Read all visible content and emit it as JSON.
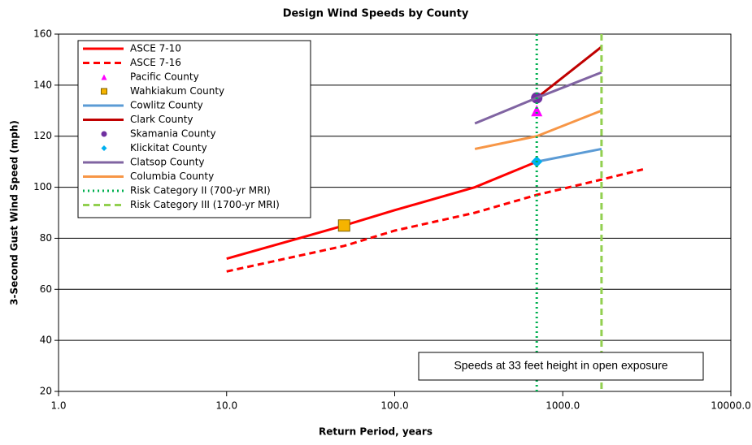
{
  "chart_data": {
    "type": "line",
    "title": "Design Wind Speeds by County",
    "xlabel": "Return Period, years",
    "ylabel": "3-Second Gust Wind Speed (mph)",
    "xscale": "log",
    "xlim": [
      1,
      10000
    ],
    "xticks": [
      {
        "value": 1,
        "label": "1.0"
      },
      {
        "value": 10,
        "label": "10.0"
      },
      {
        "value": 100,
        "label": "100.0"
      },
      {
        "value": 1000,
        "label": "1000.0"
      },
      {
        "value": 10000,
        "label": "10000.0"
      }
    ],
    "ylim": [
      20,
      160
    ],
    "yticks": [
      20,
      40,
      60,
      80,
      100,
      120,
      140,
      160
    ],
    "grid": true,
    "legend": "upper left",
    "annotation": "Speeds at 33 feet height in open exposure",
    "series": [
      {
        "name": "ASCE 7-10",
        "color": "#ff0000",
        "style": "solid",
        "x": [
          10,
          50,
          100,
          300,
          700
        ],
        "values": [
          72,
          85,
          91,
          100,
          110
        ]
      },
      {
        "name": "ASCE 7-16",
        "color": "#ff0000",
        "style": "dashed",
        "x": [
          10,
          50,
          100,
          300,
          700,
          1700,
          3000
        ],
        "values": [
          67,
          77,
          83,
          90,
          97,
          103,
          107
        ]
      },
      {
        "name": "Pacific County",
        "color": "#ff00ff",
        "marker": "triangle",
        "x": [
          700
        ],
        "values": [
          130
        ]
      },
      {
        "name": "Wahkiakum County",
        "color": "#f5b400",
        "marker": "square",
        "x": [
          50
        ],
        "values": [
          85
        ]
      },
      {
        "name": "Cowlitz County",
        "color": "#5b9bd5",
        "style": "solid",
        "x": [
          700,
          1700
        ],
        "values": [
          110,
          115
        ]
      },
      {
        "name": "Clark County",
        "color": "#c00000",
        "style": "solid",
        "x": [
          700,
          1700
        ],
        "values": [
          135,
          155
        ]
      },
      {
        "name": "Skamania County",
        "color": "#7030a0",
        "marker": "circle",
        "x": [
          700
        ],
        "values": [
          135
        ]
      },
      {
        "name": "Klickitat County",
        "color": "#00b0f0",
        "marker": "diamond",
        "x": [
          700
        ],
        "values": [
          110
        ]
      },
      {
        "name": "Clatsop County",
        "color": "#8064a2",
        "style": "solid",
        "x": [
          300,
          700,
          1700
        ],
        "values": [
          125,
          135,
          145
        ]
      },
      {
        "name": "Columbia County",
        "color": "#f79646",
        "style": "solid",
        "x": [
          300,
          700,
          1700
        ],
        "values": [
          115,
          120,
          130
        ]
      },
      {
        "name": "Risk Category II (700-yr MRI)",
        "color": "#00b050",
        "style": "dotted",
        "vline": 700
      },
      {
        "name": "Risk Category III (1700-yr MRI)",
        "color": "#92d050",
        "style": "dashed",
        "vline": 1700
      }
    ]
  }
}
